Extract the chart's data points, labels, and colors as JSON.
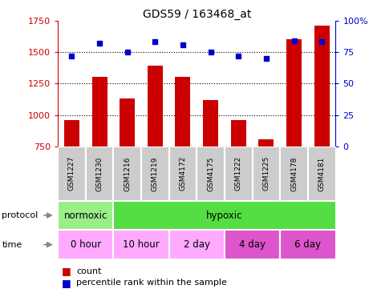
{
  "title": "GDS59 / 163468_at",
  "samples": [
    "GSM1227",
    "GSM1230",
    "GSM1216",
    "GSM1219",
    "GSM4172",
    "GSM4175",
    "GSM1222",
    "GSM1225",
    "GSM4178",
    "GSM4181"
  ],
  "counts": [
    960,
    1300,
    1130,
    1390,
    1300,
    1120,
    960,
    810,
    1600,
    1710
  ],
  "percentiles": [
    72,
    82,
    75,
    83,
    81,
    75,
    72,
    70,
    84,
    83
  ],
  "ylim_left": [
    750,
    1750
  ],
  "ylim_right": [
    0,
    100
  ],
  "yticks_left": [
    750,
    1000,
    1250,
    1500,
    1750
  ],
  "yticks_right": [
    0,
    25,
    50,
    75,
    100
  ],
  "bar_color": "#cc0000",
  "dot_color": "#0000cc",
  "hline_values": [
    1000,
    1250,
    1500
  ],
  "bg_color": "#ffffff",
  "sample_bg": "#cccccc",
  "proto_spans": [
    [
      0,
      2,
      "normoxic",
      "#99ee88"
    ],
    [
      2,
      10,
      "hypoxic",
      "#55dd44"
    ]
  ],
  "time_spans": [
    [
      0,
      2,
      "0 hour",
      "#ffaaff"
    ],
    [
      2,
      4,
      "10 hour",
      "#ffaaff"
    ],
    [
      4,
      6,
      "2 day",
      "#ffaaff"
    ],
    [
      6,
      8,
      "4 day",
      "#dd55cc"
    ],
    [
      8,
      10,
      "6 day",
      "#dd55cc"
    ]
  ],
  "arrow_color": "#888888"
}
